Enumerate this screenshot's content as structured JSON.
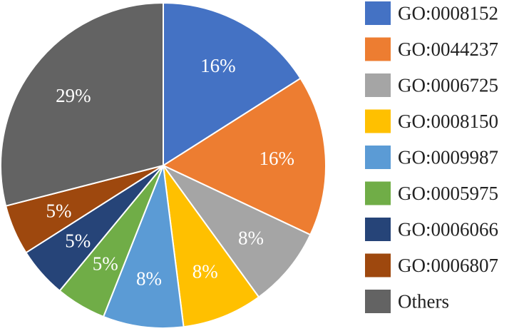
{
  "chart_data": {
    "type": "pie",
    "title": "",
    "legend_position": "right",
    "slices": [
      {
        "name": "GO:0008152",
        "value": 16,
        "label": "16%",
        "color": "#4472C4"
      },
      {
        "name": "GO:0044237",
        "value": 16,
        "label": "16%",
        "color": "#ED7D31"
      },
      {
        "name": "GO:0006725",
        "value": 8,
        "label": "8%",
        "color": "#A5A5A5"
      },
      {
        "name": "GO:0008150",
        "value": 8,
        "label": "8%",
        "color": "#FFC000"
      },
      {
        "name": "GO:0009987",
        "value": 8,
        "label": "8%",
        "color": "#5B9BD5"
      },
      {
        "name": "GO:0005975",
        "value": 5,
        "label": "5%",
        "color": "#70AD47"
      },
      {
        "name": "GO:0006066",
        "value": 5,
        "label": "5%",
        "color": "#264478"
      },
      {
        "name": "GO:0006807",
        "value": 5,
        "label": "5%",
        "color": "#9E480E"
      },
      {
        "name": "Others",
        "value": 29,
        "label": "29%",
        "color": "#636363"
      }
    ]
  }
}
